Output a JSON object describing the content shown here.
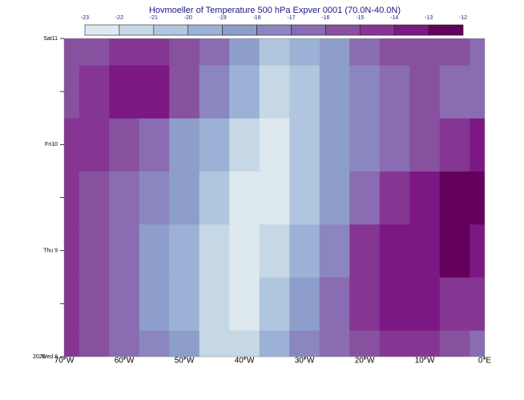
{
  "chart_data": {
    "type": "hovmoeller",
    "title": "Hovmoeller of Temperature 500 hPa Expver 0001 (70.0N-40.0N)",
    "levels": [
      -23,
      -22,
      -21,
      -20,
      -19,
      -18,
      -17,
      -16,
      -15,
      -14,
      -13,
      -12
    ],
    "colors": [
      "#dde8ef",
      "#c6d7e5",
      "#afc6de",
      "#9bb2d6",
      "#8e9ecb",
      "#8b86bf",
      "#8a6cb2",
      "#87519f",
      "#843692",
      "#7b1884",
      "#63005c"
    ],
    "x": [
      -70,
      -65,
      -60,
      -55,
      -50,
      -45,
      -40,
      -35,
      -30,
      -25,
      -20,
      -15,
      -10,
      -5,
      0
    ],
    "xlim": [
      -70,
      0
    ],
    "xticks": [
      {
        "value": -70,
        "label": "70°W"
      },
      {
        "value": -60,
        "label": "60°W"
      },
      {
        "value": -50,
        "label": "50°W"
      },
      {
        "value": -40,
        "label": "40°W"
      },
      {
        "value": -30,
        "label": "30°W"
      },
      {
        "value": -20,
        "label": "20°W"
      },
      {
        "value": -10,
        "label": "10°W"
      },
      {
        "value": 0,
        "label": "0°E"
      }
    ],
    "categories": [
      "Wed 8",
      null,
      "Thu 9",
      null,
      "Fri10",
      null,
      "Sat11"
    ],
    "year_label": "2020",
    "values": [
      [
        -15,
        -15.5,
        -16.5,
        -18,
        -19,
        -21.5,
        -22,
        -20,
        -18,
        -17,
        -15.5,
        -15,
        -15,
        -16,
        -16.5
      ],
      [
        -15,
        -15.5,
        -16.5,
        -18.5,
        -20,
        -21.5,
        -22.5,
        -21,
        -19,
        -17,
        -14.5,
        -13.8,
        -14,
        -14.5,
        -15
      ],
      [
        -15,
        -16,
        -17,
        -18.5,
        -20,
        -21.5,
        -22.5,
        -22,
        -20,
        -18,
        -15,
        -14,
        -13.5,
        -13,
        -13.5
      ],
      [
        -14.5,
        -15.5,
        -16.5,
        -17.5,
        -19,
        -20.5,
        -22.5,
        -22.5,
        -20.5,
        -18.5,
        -16.5,
        -15,
        -14,
        -13,
        -12.5
      ],
      [
        -15,
        -14.5,
        -15.5,
        -17,
        -18.5,
        -20,
        -21.5,
        -22.5,
        -21,
        -19,
        -17.5,
        -16.5,
        -15.5,
        -14.5,
        -14
      ],
      [
        -15.5,
        -15,
        -13.8,
        -14,
        -16,
        -18,
        -20,
        -21.5,
        -21,
        -19,
        -18,
        -17,
        -16,
        -16.5,
        -17
      ],
      [
        -16,
        -15.5,
        -15,
        -15,
        -15.5,
        -17,
        -18.5,
        -20.5,
        -20,
        -18.5,
        -17,
        -16,
        -15.5,
        -16,
        -17
      ]
    ]
  }
}
